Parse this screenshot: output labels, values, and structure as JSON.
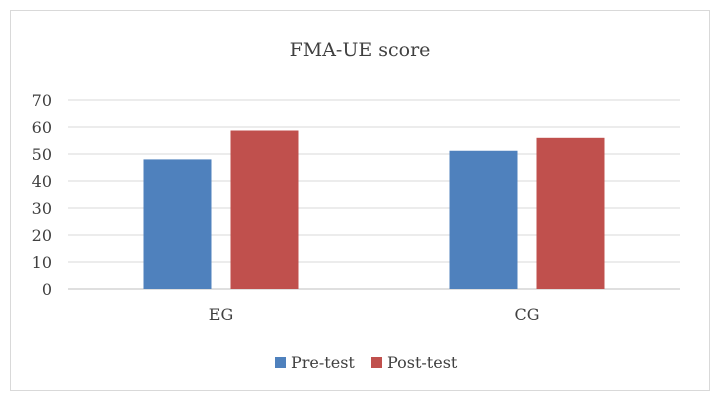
{
  "chart_data": {
    "type": "bar",
    "title": "FMA-UE score",
    "categories": [
      "EG",
      "CG"
    ],
    "series": [
      {
        "name": "Pre-test",
        "values": [
          48,
          51.2
        ],
        "color": "#4f81bd"
      },
      {
        "name": "Post-test",
        "values": [
          58.7,
          56
        ],
        "color": "#c0504d"
      }
    ],
    "ylim": [
      0,
      70
    ],
    "yticks": [
      0,
      10,
      20,
      30,
      40,
      50,
      60,
      70
    ],
    "grid": true,
    "legend_position": "bottom"
  }
}
